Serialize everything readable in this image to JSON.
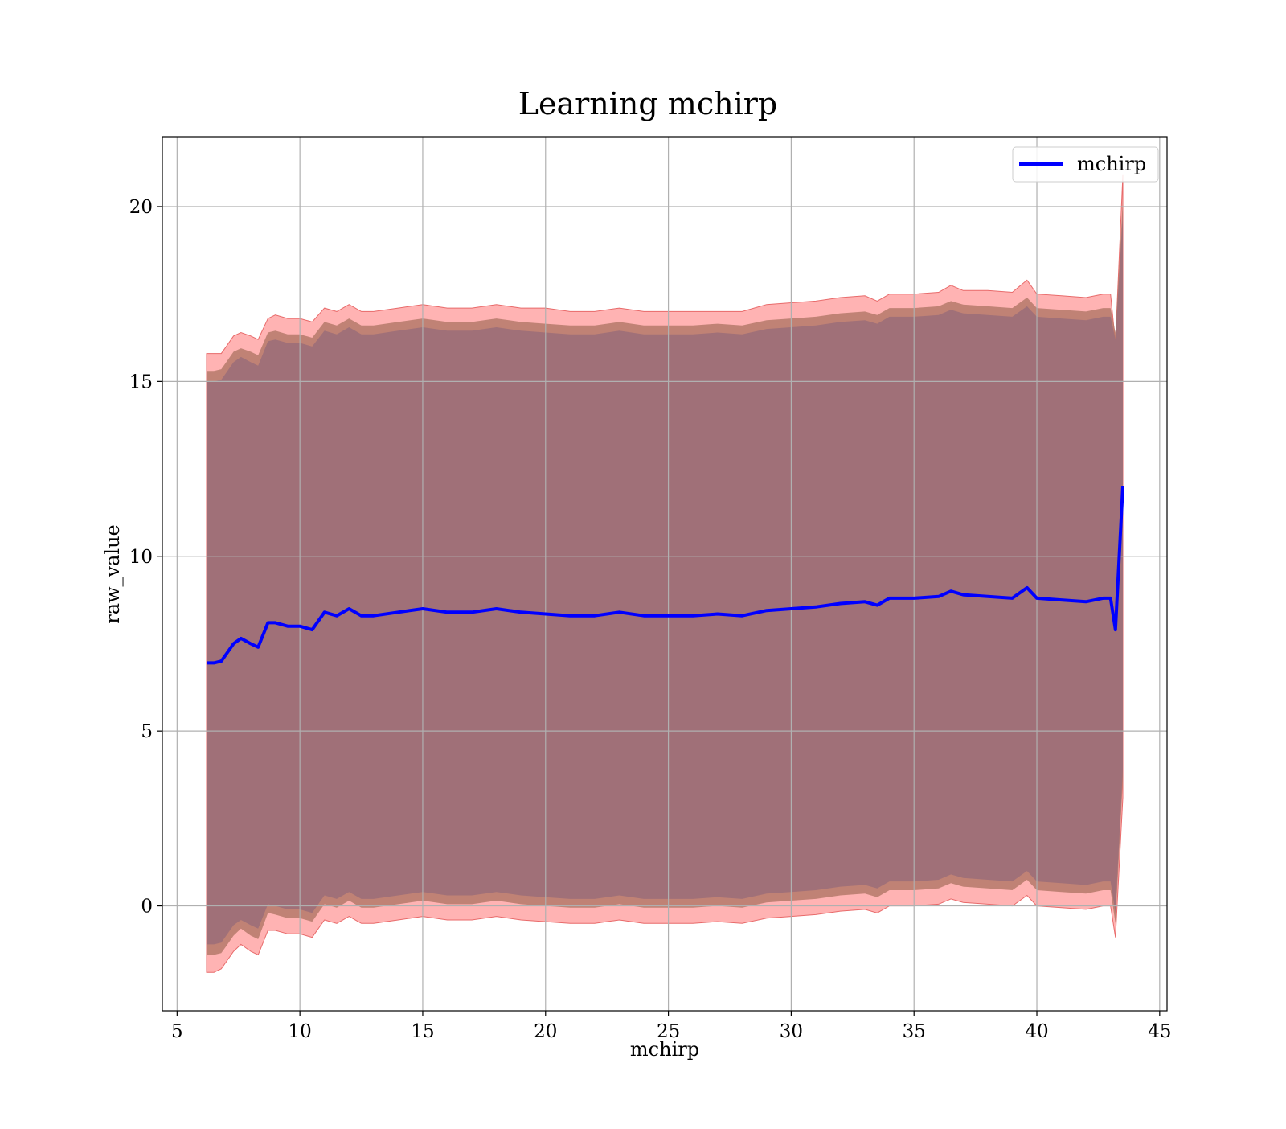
{
  "chart_data": {
    "type": "area",
    "title": "Learning mchirp",
    "xlabel": "mchirp",
    "ylabel": "raw_value",
    "xlim": [
      4.4,
      45.3
    ],
    "ylim": [
      -3.0,
      22.0
    ],
    "x_ticks": [
      5,
      10,
      15,
      20,
      25,
      30,
      35,
      40,
      45
    ],
    "y_ticks": [
      0,
      5,
      10,
      15,
      20
    ],
    "grid": true,
    "legend": {
      "position": "top-right",
      "entries": [
        "mchirp"
      ]
    },
    "colors": {
      "mean_line": "#0000ff",
      "outer_band": "#ff9999",
      "middle_band": "#b5796a",
      "inner_band": "#a07078"
    },
    "x": [
      6.2,
      6.5,
      6.8,
      7.0,
      7.3,
      7.6,
      8.0,
      8.3,
      8.7,
      9.0,
      9.5,
      10.0,
      10.5,
      11.0,
      11.5,
      12.0,
      12.5,
      13.0,
      14.0,
      15.0,
      16.0,
      17.0,
      18.0,
      19.0,
      20.0,
      21.0,
      22.0,
      23.0,
      24.0,
      25.0,
      26.0,
      27.0,
      28.0,
      29.0,
      30.0,
      31.0,
      32.0,
      33.0,
      33.5,
      34.0,
      35.0,
      36.0,
      36.5,
      37.0,
      38.0,
      39.0,
      39.6,
      40.0,
      41.0,
      42.0,
      42.7,
      43.0,
      43.2,
      43.5
    ],
    "series": [
      {
        "name": "mchirp",
        "values": [
          6.95,
          6.95,
          7.0,
          7.2,
          7.5,
          7.65,
          7.5,
          7.4,
          8.1,
          8.1,
          8.0,
          8.0,
          7.9,
          8.4,
          8.3,
          8.5,
          8.3,
          8.3,
          8.4,
          8.5,
          8.4,
          8.4,
          8.5,
          8.4,
          8.35,
          8.3,
          8.3,
          8.4,
          8.3,
          8.3,
          8.3,
          8.35,
          8.3,
          8.45,
          8.5,
          8.55,
          8.65,
          8.7,
          8.6,
          8.8,
          8.8,
          8.85,
          9.0,
          8.9,
          8.85,
          8.8,
          9.1,
          8.8,
          8.75,
          8.7,
          8.8,
          8.8,
          7.9,
          12.0
        ]
      }
    ],
    "bands": [
      {
        "upper": [
          15.8,
          15.8,
          15.8,
          16.0,
          16.3,
          16.4,
          16.3,
          16.2,
          16.8,
          16.9,
          16.8,
          16.8,
          16.7,
          17.1,
          17.0,
          17.2,
          17.0,
          17.0,
          17.1,
          17.2,
          17.1,
          17.1,
          17.2,
          17.1,
          17.1,
          17.0,
          17.0,
          17.1,
          17.0,
          17.0,
          17.0,
          17.0,
          17.0,
          17.2,
          17.25,
          17.3,
          17.4,
          17.45,
          17.3,
          17.5,
          17.5,
          17.55,
          17.75,
          17.6,
          17.6,
          17.55,
          17.9,
          17.5,
          17.45,
          17.4,
          17.5,
          17.5,
          16.1,
          20.9
        ],
        "lower": [
          -1.9,
          -1.9,
          -1.8,
          -1.6,
          -1.3,
          -1.1,
          -1.3,
          -1.4,
          -0.7,
          -0.7,
          -0.8,
          -0.8,
          -0.9,
          -0.4,
          -0.5,
          -0.3,
          -0.5,
          -0.5,
          -0.4,
          -0.3,
          -0.4,
          -0.4,
          -0.3,
          -0.4,
          -0.45,
          -0.5,
          -0.5,
          -0.4,
          -0.5,
          -0.5,
          -0.5,
          -0.45,
          -0.5,
          -0.35,
          -0.3,
          -0.25,
          -0.15,
          -0.1,
          -0.2,
          0.0,
          0.0,
          0.05,
          0.2,
          0.1,
          0.05,
          0.0,
          0.3,
          0.0,
          -0.05,
          -0.1,
          0.0,
          0.0,
          -0.9,
          3.1
        ]
      },
      {
        "upper": [
          15.3,
          15.3,
          15.35,
          15.55,
          15.85,
          15.95,
          15.85,
          15.75,
          16.4,
          16.45,
          16.35,
          16.35,
          16.25,
          16.7,
          16.6,
          16.8,
          16.6,
          16.6,
          16.7,
          16.8,
          16.7,
          16.7,
          16.8,
          16.7,
          16.65,
          16.6,
          16.6,
          16.7,
          16.6,
          16.6,
          16.6,
          16.65,
          16.6,
          16.75,
          16.8,
          16.85,
          16.95,
          17.0,
          16.9,
          17.1,
          17.1,
          17.15,
          17.3,
          17.2,
          17.15,
          17.1,
          17.4,
          17.1,
          17.05,
          17.0,
          17.1,
          17.1,
          16.4,
          20.2
        ],
        "lower": [
          -1.4,
          -1.4,
          -1.35,
          -1.15,
          -0.85,
          -0.65,
          -0.85,
          -0.95,
          -0.2,
          -0.25,
          -0.35,
          -0.35,
          -0.45,
          0.05,
          -0.05,
          0.15,
          -0.05,
          -0.05,
          0.05,
          0.15,
          0.05,
          0.05,
          0.15,
          0.05,
          0.0,
          -0.05,
          -0.05,
          0.05,
          -0.05,
          -0.05,
          -0.05,
          0.0,
          -0.05,
          0.1,
          0.15,
          0.2,
          0.3,
          0.35,
          0.25,
          0.45,
          0.45,
          0.5,
          0.65,
          0.55,
          0.5,
          0.45,
          0.75,
          0.45,
          0.4,
          0.35,
          0.45,
          0.45,
          -0.5,
          3.6
        ]
      },
      {
        "upper": [
          15.0,
          15.0,
          15.05,
          15.25,
          15.55,
          15.7,
          15.55,
          15.45,
          16.15,
          16.2,
          16.1,
          16.1,
          16.0,
          16.45,
          16.35,
          16.55,
          16.35,
          16.35,
          16.45,
          16.55,
          16.45,
          16.45,
          16.55,
          16.45,
          16.4,
          16.35,
          16.35,
          16.45,
          16.35,
          16.35,
          16.35,
          16.4,
          16.35,
          16.5,
          16.55,
          16.6,
          16.7,
          16.75,
          16.65,
          16.85,
          16.85,
          16.9,
          17.05,
          16.95,
          16.9,
          16.85,
          17.15,
          16.85,
          16.8,
          16.75,
          16.85,
          16.85,
          16.2,
          19.8
        ],
        "lower": [
          -1.1,
          -1.1,
          -1.05,
          -0.85,
          -0.55,
          -0.4,
          -0.55,
          -0.65,
          0.05,
          0.0,
          -0.1,
          -0.1,
          -0.2,
          0.3,
          0.2,
          0.4,
          0.2,
          0.2,
          0.3,
          0.4,
          0.3,
          0.3,
          0.4,
          0.3,
          0.25,
          0.2,
          0.2,
          0.3,
          0.2,
          0.2,
          0.2,
          0.25,
          0.2,
          0.35,
          0.4,
          0.45,
          0.55,
          0.6,
          0.5,
          0.7,
          0.7,
          0.75,
          0.9,
          0.8,
          0.75,
          0.7,
          1.0,
          0.7,
          0.65,
          0.6,
          0.7,
          0.7,
          -0.2,
          3.9
        ]
      }
    ]
  }
}
